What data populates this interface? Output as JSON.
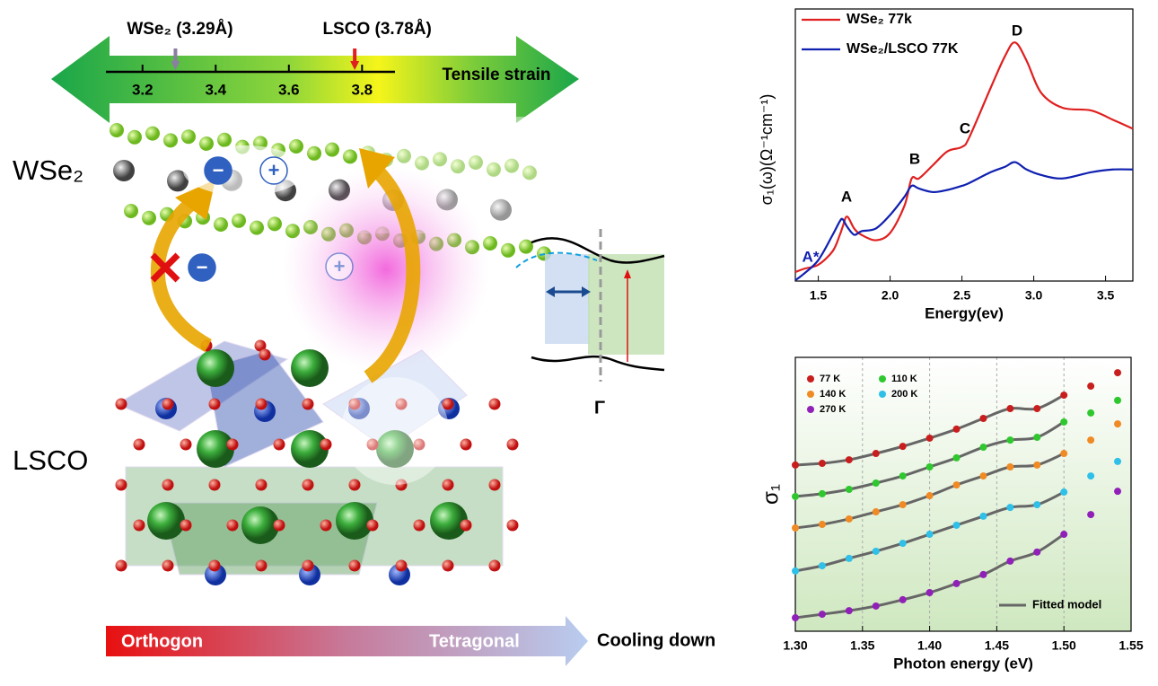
{
  "diagram": {
    "strain": {
      "xlim": [
        3.1,
        3.89
      ],
      "ticks": [
        3.2,
        3.4,
        3.6,
        3.8
      ],
      "label": "Tensile strain",
      "markers": [
        {
          "label": "WSe₂  (3.29Å)",
          "value": 3.29,
          "color": "#8a7fa0"
        },
        {
          "label": "LSCO  (3.78Å)",
          "value": 3.78,
          "color": "#e02020"
        }
      ]
    },
    "layer_labels": [
      "WSe₂",
      "LSCO"
    ],
    "charges": [
      "−",
      "+",
      "−",
      "+"
    ],
    "gamma": "Γ",
    "phase_from": "Orthogon",
    "phase_to": "Tetragonal",
    "cooling": "Cooling down"
  },
  "chart_data": [
    {
      "type": "line",
      "xlabel": "Energy(ev)",
      "ylabel": "σ₁(ω)(Ω⁻¹cm⁻¹)",
      "xlim": [
        1.34,
        3.69
      ],
      "ylim": [
        0,
        10
      ],
      "xticks": [
        1.5,
        {
          "value": 2,
          "label": "2.0"
        },
        2.5,
        {
          "value": 3,
          "label": "3.0"
        },
        3.5
      ],
      "x": [
        1.34,
        1.4,
        1.5,
        1.6,
        1.65,
        1.67,
        1.7,
        1.75,
        1.8,
        1.9,
        2.0,
        2.1,
        2.15,
        2.2,
        2.3,
        2.4,
        2.5,
        2.55,
        2.7,
        2.8,
        2.87,
        2.95,
        3.05,
        3.2,
        3.4,
        3.55,
        3.69
      ],
      "series": [
        {
          "name": "WSe₂ 77k",
          "color": "#e02020",
          "values": [
            0.33,
            0.45,
            0.6,
            1.1,
            1.7,
            2.0,
            2.37,
            1.93,
            1.7,
            1.5,
            1.77,
            2.77,
            3.77,
            3.77,
            4.27,
            4.77,
            4.93,
            5.27,
            7.1,
            8.27,
            8.77,
            8.1,
            6.93,
            6.37,
            6.27,
            5.93,
            5.6
          ]
        },
        {
          "name": "WSe₂/LSCO 77K",
          "color": "#1020b0",
          "values": [
            0.03,
            0.27,
            0.77,
            1.7,
            2.2,
            2.27,
            2.0,
            1.7,
            1.83,
            1.93,
            2.43,
            3.1,
            3.5,
            3.4,
            3.27,
            3.35,
            3.5,
            3.6,
            4.0,
            4.2,
            4.37,
            4.1,
            3.9,
            3.77,
            4.0,
            4.1,
            4.1
          ]
        }
      ],
      "annotations": [
        "A",
        "B",
        "C",
        "D",
        "A*"
      ],
      "legend": "upper left"
    },
    {
      "type": "scatter",
      "xlabel": "Photon energy (eV)",
      "ylabel": "σ₁",
      "xlim": [
        1.3,
        1.55
      ],
      "ylim": [
        0,
        10
      ],
      "xticks": [
        {
          "value": 1.3,
          "label": "1.30"
        },
        1.35,
        {
          "value": 1.4,
          "label": "1.40"
        },
        1.45,
        {
          "value": 1.5,
          "label": "1.50"
        },
        1.55
      ],
      "x": [
        1.3,
        1.32,
        1.34,
        1.36,
        1.38,
        1.4,
        1.42,
        1.44,
        1.46,
        1.48,
        1.5,
        1.52,
        1.54
      ],
      "series": [
        {
          "name": "77 K",
          "color": "#c81e1e",
          "values": [
            6.07,
            6.13,
            6.26,
            6.49,
            6.75,
            7.05,
            7.38,
            7.77,
            8.13,
            8.13,
            8.62,
            8.95,
            9.44
          ]
        },
        {
          "name": "110 K",
          "color": "#2ec82e",
          "values": [
            4.92,
            5.02,
            5.18,
            5.41,
            5.67,
            6.0,
            6.33,
            6.72,
            6.98,
            7.08,
            7.64,
            7.97,
            8.43
          ]
        },
        {
          "name": "140 K",
          "color": "#f08a24",
          "values": [
            3.77,
            3.9,
            4.1,
            4.36,
            4.62,
            4.95,
            5.34,
            5.67,
            6.0,
            6.07,
            6.49,
            6.98,
            7.57
          ]
        },
        {
          "name": "200 K",
          "color": "#2ec0e8",
          "values": [
            2.2,
            2.39,
            2.66,
            2.92,
            3.21,
            3.54,
            3.87,
            4.2,
            4.52,
            4.62,
            5.08,
            5.67,
            6.2
          ]
        },
        {
          "name": "270 K",
          "color": "#9020b8",
          "values": [
            0.49,
            0.62,
            0.75,
            0.92,
            1.15,
            1.41,
            1.74,
            2.07,
            2.56,
            2.89,
            3.54,
            4.26,
            5.11
          ]
        }
      ],
      "fit": {
        "name": "Fitted model",
        "color": "#666666",
        "until": 1.5
      },
      "grid": true,
      "legend": "upper left"
    }
  ]
}
